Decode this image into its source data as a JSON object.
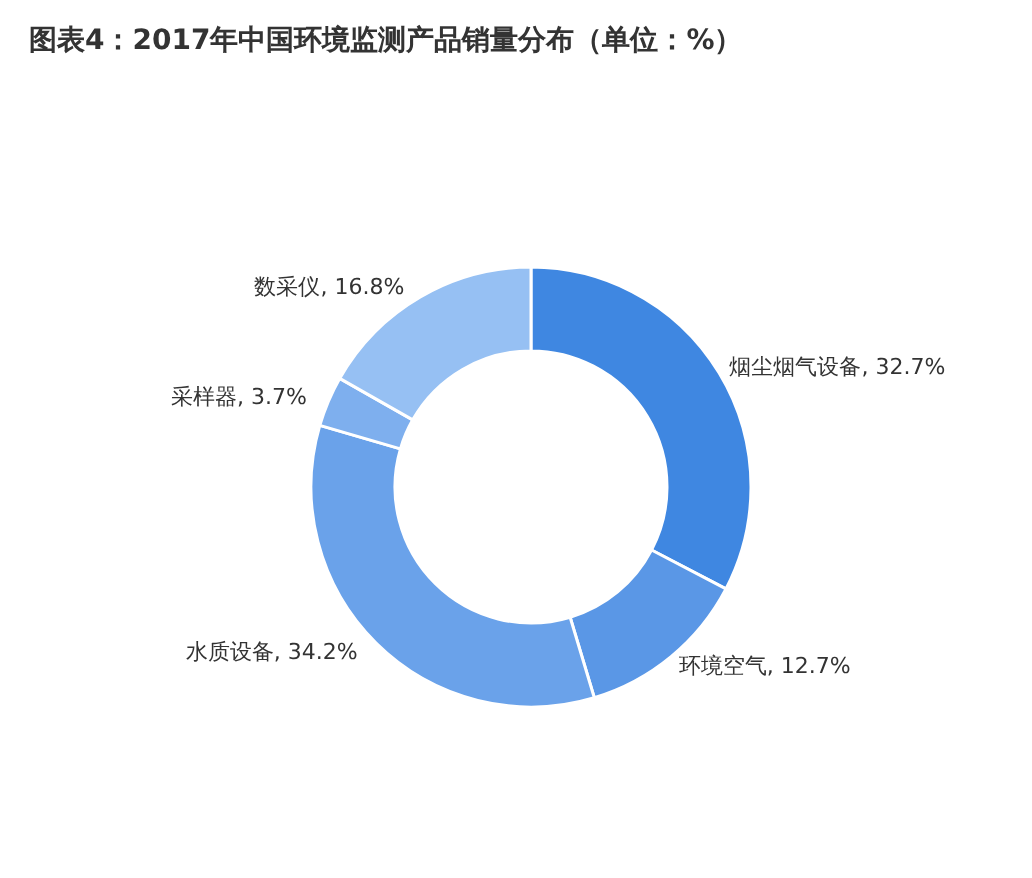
{
  "chart_data": {
    "type": "donut",
    "title": "图表4：2017年中国环境监测产品销量分布（单位：%）",
    "categories": [
      "烟尘烟气设备",
      "环境空气",
      "水质设备",
      "采样器",
      "数采仪"
    ],
    "values": [
      32.7,
      12.7,
      34.2,
      3.7,
      16.8
    ],
    "colors": [
      "#3f87e1",
      "#5a97e6",
      "#6aa2ea",
      "#7eafee",
      "#96c0f3"
    ],
    "value_labels": [
      ", 32.7%",
      ", 12.7%",
      ", 34.2%",
      ", 3.7%",
      ", 16.8%"
    ]
  }
}
